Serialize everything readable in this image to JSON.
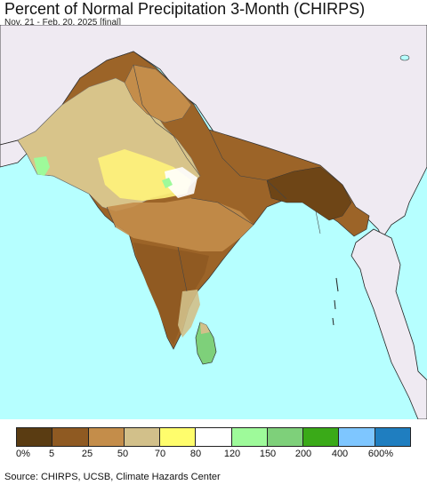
{
  "title": "Percent of Normal Precipitation 3-Month (CHIRPS)",
  "subtitle": "Nov. 21 - Feb. 20, 2025 [final]",
  "legend": {
    "colors": [
      "#5a3c12",
      "#8f5a22",
      "#c48d4a",
      "#d2c08a",
      "#fffd6c",
      "#ffffff",
      "#9efa9a",
      "#7ed07a",
      "#3aaa18",
      "#7ec6ff",
      "#1f7ec0"
    ],
    "ticks": [
      "0%",
      "5",
      "25",
      "50",
      "70",
      "80",
      "120",
      "150",
      "200",
      "400",
      "600%"
    ]
  },
  "source": "Source: CHIRPS, UCSB, Climate Hazards Center"
}
